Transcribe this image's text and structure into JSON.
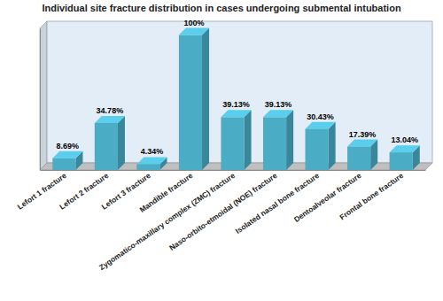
{
  "chart_data": {
    "type": "bar",
    "title": "Individual site fracture distribution in cases undergoing submental intubation",
    "categories": [
      "Lefort 1 fracture",
      "Lefort 2 fracture",
      "Lefort 3 fracture",
      "Mandible fracture",
      "Zygomatico-maxillary complex (ZMC) fracture",
      "Naso-orbito-etmoidal (NOE) fracture",
      "Isolated nasal bone fracture",
      "Dentoalveolar fracture",
      "Frontal bone fracture"
    ],
    "values": [
      8.69,
      34.78,
      4.34,
      100,
      39.13,
      39.13,
      30.43,
      17.39,
      13.04
    ],
    "value_labels": [
      "8.69%",
      "34.78%",
      "4.34%",
      "100%",
      "39.13%",
      "39.13%",
      "30.43%",
      "17.39%",
      "13.04%"
    ],
    "color": "#4bacc6",
    "ylim": [
      0,
      105
    ],
    "grid": false,
    "data_labels": true,
    "tick_labels": "x"
  }
}
